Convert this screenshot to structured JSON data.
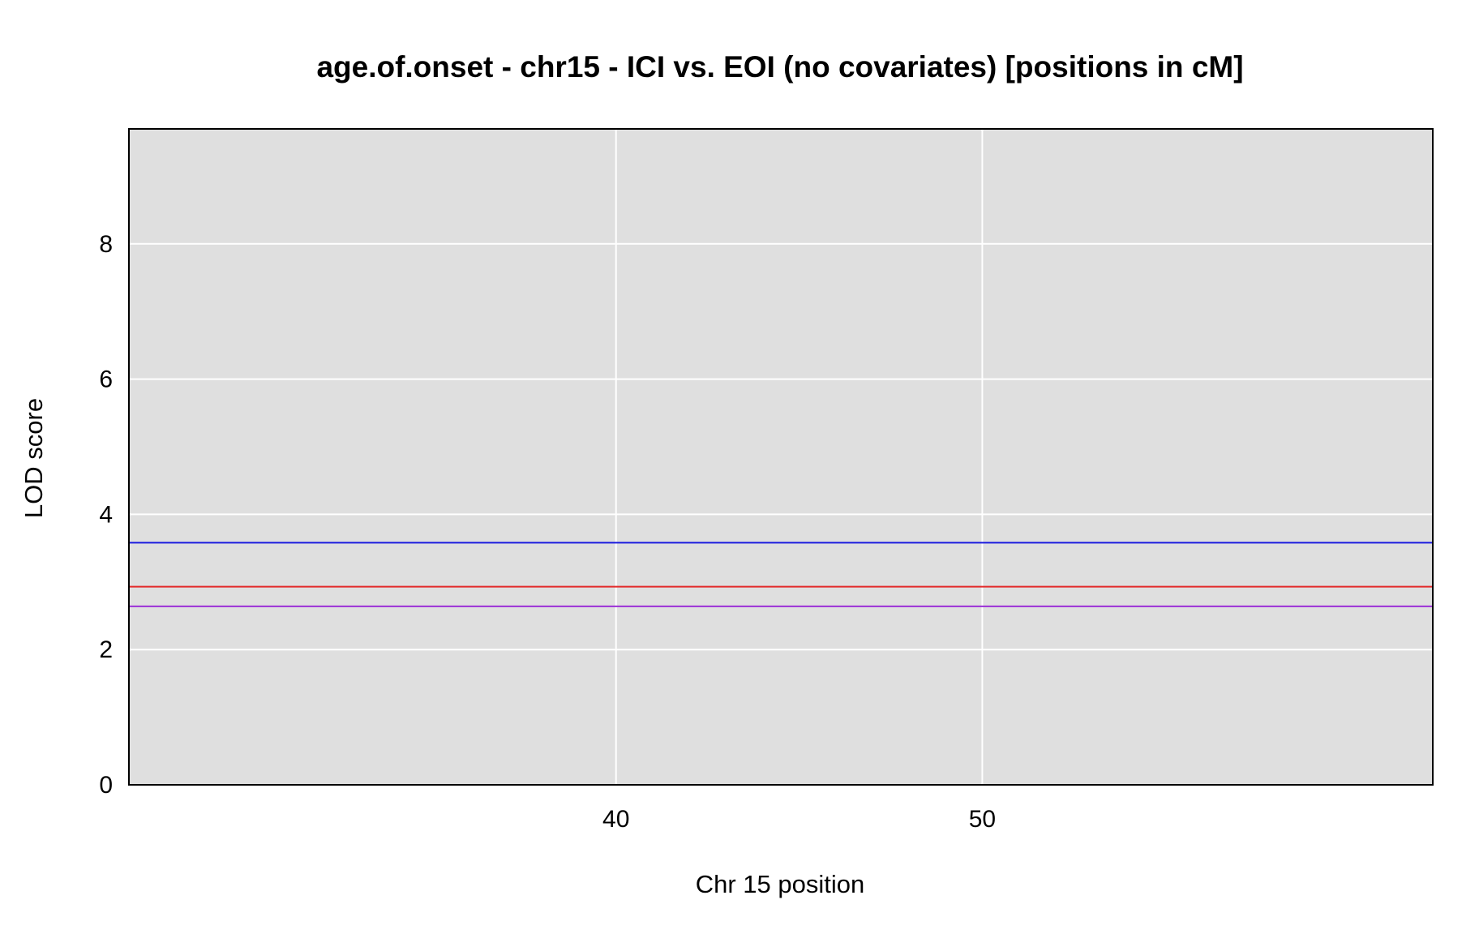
{
  "chart_data": {
    "type": "line",
    "title": "age.of.onset - chr15 - ICI vs. EOI (no covariates) [positions in cM]",
    "xlabel": "Chr 15 position",
    "ylabel": "LOD score",
    "xlim": [
      26.7,
      62.3
    ],
    "ylim": [
      0,
      9.7
    ],
    "x_ticks": [
      40,
      50
    ],
    "y_ticks": [
      0,
      2,
      4,
      6,
      8
    ],
    "grid": true,
    "background": "#dfdfdf",
    "grid_color": "#ffffff",
    "series": [],
    "thresholds": [
      {
        "value": 3.58,
        "color": "#1a1adf"
      },
      {
        "value": 2.93,
        "color": "#e32a2a"
      },
      {
        "value": 2.64,
        "color": "#9b2fd6"
      }
    ]
  }
}
